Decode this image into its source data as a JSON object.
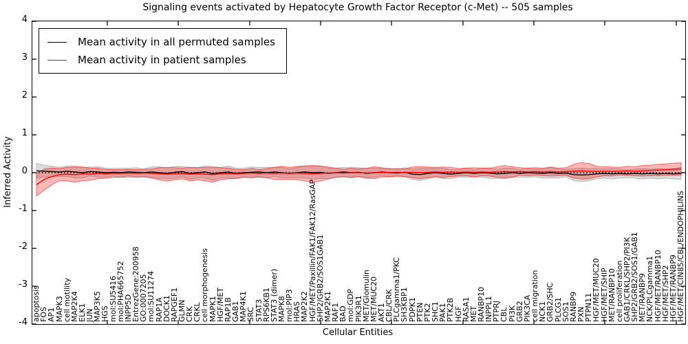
{
  "figure": {
    "title": "Signaling events activated by Hepatocyte Growth Factor Receptor (c-Met) -- 505 samples"
  },
  "legend": {
    "items": [
      {
        "label": "Mean activity in all permuted samples",
        "color": "#000000"
      },
      {
        "label": "Mean activity in patient samples",
        "color": "#ff0000"
      }
    ]
  },
  "axes": {
    "xlabel": "Cellular Entities",
    "ylabel": "Inferred Activity",
    "y_ticks": [
      "4",
      "3",
      "2",
      "1",
      "0",
      "-1",
      "-2",
      "-3",
      "-4"
    ]
  },
  "chart_data": {
    "type": "line",
    "title": "Signaling events activated by Hepatocyte Growth Factor Receptor (c-Met) -- 505 samples",
    "xlabel": "Cellular Entities",
    "ylabel": "Inferred Activity",
    "ylim": [
      -4,
      4
    ],
    "grid": false,
    "legend_position": "upper left",
    "zero_line": {
      "y": 0,
      "style": "dotted",
      "color": "#000000"
    },
    "categories": [
      "apoptosis",
      "FOS",
      "AP1",
      "MAPK3",
      "cell motility",
      "MAP2K4",
      "ELK1",
      "JUN",
      "MAP3K5",
      "HGS",
      "mol:SU5416",
      "mol:PHA665752",
      "INPP5D",
      "EntrezGene:200958",
      "GO:0007205",
      "mol:SU11274",
      "RAP1A",
      "DOCK1",
      "RAPGEF1",
      "GLMN",
      "CRK",
      "CRKL",
      "cell morphogenesis",
      "MAPK1",
      "HGF/MET",
      "RAP1B",
      "GAB1",
      "MAP4K1",
      "SRC",
      "STAT3",
      "RPS6KB1",
      "STAT3 (dimer)",
      "MAPK8",
      "mol:PIP3",
      "HRAS",
      "MAP2K2",
      "HGF/MET/Paxillin/FAK1/FAK12/RasGAP",
      "SHP2/GRB2/SOS1GAB1",
      "MAP2K1",
      "RAF1",
      "BAD",
      "mol:GDP",
      "PIK3R1",
      "MET/Glomulin",
      "MET/MUC20",
      "AKT1",
      "CBL/CRK",
      "PLCgamma1/PKC",
      "SH3KBP1",
      "PDPK1",
      "PTEN",
      "PTK2",
      "SHC1",
      "PAK1",
      "PTK2B",
      "HGF",
      "RASA1",
      "MET",
      "RANBP10",
      "INPPL1",
      "PTPRJ",
      "CBL",
      "PI3K",
      "GRB2",
      "PIK3CA",
      "cell migration",
      "NCK1",
      "GRB2/SHC",
      "PLCG1",
      "SOS1",
      "RANBP9",
      "PXN",
      "PTPN11",
      "HGF/MET/MUC20",
      "HGF/MET/SHIP",
      "MET/RANBP10",
      "cell proliferation",
      "GAB1/CRKL/SHP2/PI3K",
      "SHP2/GRB2/SOS1/GAB1",
      "MET/RANBP9",
      "NCK/PLCgamma1",
      "HGF/MET/RANBP10",
      "HGF/MET/SHP2",
      "HGF/MET/RANBP9",
      "HGF/MET/CIN85/CBL/ENDOPHILINS"
    ],
    "series": [
      {
        "name": "Mean activity in all permuted samples",
        "color": "#000000",
        "band_fill": "rgba(0,0,0,0.14)",
        "band_edge": "rgba(0,0,0,0.22)",
        "values": [
          0.05,
          0.04,
          0.03,
          0.02,
          0.04,
          0.02,
          0,
          0.03,
          0.02,
          0,
          0.01,
          0,
          0.02,
          0.01,
          0,
          0.02,
          0,
          -0.02,
          0.01,
          0.03,
          -0.02,
          0,
          0.02,
          -0.03,
          0,
          0.02,
          -0.02,
          0,
          0.01,
          0.02,
          0,
          0.02,
          0,
          -0.02,
          0,
          0.02,
          0,
          0.01,
          -0.02,
          0,
          0.02,
          0,
          0.01,
          -0.02,
          0,
          0.02,
          0,
          -0.01,
          0.01,
          -0.04,
          -0.05,
          -0.02,
          0,
          -0.02,
          -0.04,
          -0.02,
          0,
          -0.02,
          0,
          -0.01,
          -0.03,
          -0.02,
          0,
          -0.02,
          0,
          -0.01,
          -0.02,
          0,
          -0.02,
          -0.01,
          -0.05,
          -0.06,
          -0.05,
          -0.03,
          -0.02,
          -0.03,
          -0.02,
          -0.03,
          -0.02,
          -0.03,
          -0.02,
          -0.03,
          -0.02,
          -0.03,
          -0.02
        ],
        "band_halfwidth": [
          0.2,
          0.16,
          0.14,
          0.12,
          0.14,
          0.16,
          0.14,
          0.12,
          0.14,
          0.12,
          0.1,
          0.12,
          0.1,
          0.12,
          0.1,
          0.14,
          0.16,
          0.14,
          0.16,
          0.14,
          0.16,
          0.14,
          0.16,
          0.18,
          0.14,
          0.16,
          0.14,
          0.12,
          0.14,
          0.12,
          0.14,
          0.12,
          0.14,
          0.12,
          0.14,
          0.16,
          0.18,
          0.16,
          0.14,
          0.12,
          0.12,
          0.14,
          0.12,
          0.14,
          0.12,
          0.1,
          0.12,
          0.1,
          0.12,
          0.14,
          0.16,
          0.14,
          0.12,
          0.14,
          0.12,
          0.1,
          0.12,
          0.1,
          0.12,
          0.14,
          0.12,
          0.14,
          0.12,
          0.1,
          0.12,
          0.1,
          0.12,
          0.14,
          0.12,
          0.1,
          0.16,
          0.18,
          0.16,
          0.14,
          0.12,
          0.14,
          0.12,
          0.1,
          0.12,
          0.14,
          0.12,
          0.14,
          0.12,
          0.14,
          0.16
        ]
      },
      {
        "name": "Mean activity in patient samples",
        "color": "#ff0000",
        "band_fill": "rgba(255,0,0,0.28)",
        "band_edge": "rgba(255,0,0,0.55)",
        "values": [
          -0.32,
          -0.18,
          -0.1,
          -0.05,
          -0.04,
          -0.05,
          -0.03,
          -0.04,
          -0.02,
          -0.03,
          -0.02,
          -0.02,
          -0.01,
          -0.02,
          -0.01,
          -0.02,
          -0.03,
          -0.04,
          -0.03,
          -0.02,
          -0.04,
          -0.03,
          -0.04,
          -0.05,
          -0.03,
          -0.02,
          -0.03,
          -0.02,
          -0.01,
          -0.02,
          -0.01,
          -0.02,
          -0.01,
          -0.02,
          -0.01,
          -0.02,
          -0.03,
          -0.02,
          -0.01,
          0,
          -0.01,
          0,
          0,
          -0.01,
          0,
          0.01,
          0,
          0.01,
          0,
          0.01,
          0,
          0.01,
          0.02,
          0.01,
          0.02,
          0.01,
          0.02,
          0.01,
          0.02,
          0.01,
          0.02,
          0.03,
          0.02,
          0.03,
          0.02,
          0.03,
          0.02,
          0.03,
          0.02,
          0.03,
          0.04,
          0.05,
          0.04,
          0.03,
          0.04,
          0.03,
          0.04,
          0.05,
          0.04,
          0.05,
          0.06,
          0.07,
          0.08,
          0.09,
          0.1
        ],
        "band_halfwidth": [
          0.3,
          0.28,
          0.22,
          0.16,
          0.18,
          0.2,
          0.18,
          0.16,
          0.14,
          0.12,
          0.1,
          0.1,
          0.1,
          0.1,
          0.1,
          0.12,
          0.16,
          0.18,
          0.16,
          0.14,
          0.18,
          0.16,
          0.18,
          0.2,
          0.16,
          0.14,
          0.12,
          0.1,
          0.12,
          0.1,
          0.12,
          0.16,
          0.18,
          0.16,
          0.18,
          0.2,
          0.22,
          0.2,
          0.16,
          0.12,
          0.1,
          0.12,
          0.1,
          0.12,
          0.16,
          0.12,
          0.1,
          0.1,
          0.1,
          0.14,
          0.16,
          0.14,
          0.12,
          0.14,
          0.12,
          0.1,
          0.1,
          0.12,
          0.1,
          0.1,
          0.14,
          0.16,
          0.14,
          0.1,
          0.1,
          0.1,
          0.1,
          0.12,
          0.1,
          0.1,
          0.18,
          0.22,
          0.2,
          0.14,
          0.12,
          0.12,
          0.1,
          0.12,
          0.12,
          0.14,
          0.14,
          0.15,
          0.15,
          0.16,
          0.16
        ]
      }
    ]
  }
}
